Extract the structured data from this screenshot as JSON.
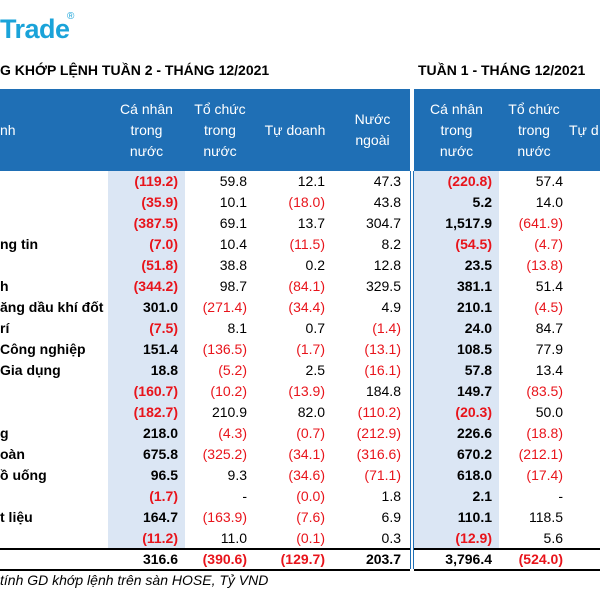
{
  "logo": {
    "text": "Trade",
    "reg": "®"
  },
  "titles": {
    "left": "G KHỚP LỆNH TUẦN 2 - THÁNG 12/2021",
    "right": "TUẦN 1 - THÁNG 12/2021"
  },
  "headers_left": {
    "sector": "nh",
    "c1": "Cá nhân\ntrong\nnước",
    "c2": "Tổ chức\ntrong\nnước",
    "c3": "Tự doanh",
    "c4": "Nước\nngoài"
  },
  "headers_right": {
    "c1": "Cá nhân\ntrong\nnước",
    "c2": "Tổ chức\ntrong\nnước",
    "c3": "Tự d"
  },
  "rows": [
    {
      "name": "",
      "l": [
        "(119.2)",
        "59.8",
        "12.1",
        "47.3"
      ],
      "r": [
        "(220.8)",
        "57.4"
      ]
    },
    {
      "name": "",
      "l": [
        "(35.9)",
        "10.1",
        "(18.0)",
        "43.8"
      ],
      "r": [
        "5.2",
        "14.0"
      ]
    },
    {
      "name": "",
      "l": [
        "(387.5)",
        "69.1",
        "13.7",
        "304.7"
      ],
      "r": [
        "1,517.9",
        "(641.9)"
      ]
    },
    {
      "name": "ng tin",
      "l": [
        "(7.0)",
        "10.4",
        "(11.5)",
        "8.2"
      ],
      "r": [
        "(54.5)",
        "(4.7)"
      ]
    },
    {
      "name": "",
      "l": [
        "(51.8)",
        "38.8",
        "0.2",
        "12.8"
      ],
      "r": [
        "23.5",
        "(13.8)"
      ]
    },
    {
      "name": "h",
      "l": [
        "(344.2)",
        "98.7",
        "(84.1)",
        "329.5"
      ],
      "r": [
        "381.1",
        "51.4"
      ]
    },
    {
      "name": "ăng dầu khí đốt",
      "l": [
        "301.0",
        "(271.4)",
        "(34.4)",
        "4.9"
      ],
      "r": [
        "210.1",
        "(4.5)"
      ]
    },
    {
      "name": "rí",
      "l": [
        "(7.5)",
        "8.1",
        "0.7",
        "(1.4)"
      ],
      "r": [
        "24.0",
        "84.7"
      ]
    },
    {
      "name": "Công nghiệp",
      "l": [
        "151.4",
        "(136.5)",
        "(1.7)",
        "(13.1)"
      ],
      "r": [
        "108.5",
        "77.9"
      ]
    },
    {
      "name": "Gia dụng",
      "l": [
        "18.8",
        "(5.2)",
        "2.5",
        "(16.1)"
      ],
      "r": [
        "57.8",
        "13.4"
      ]
    },
    {
      "name": "",
      "l": [
        "(160.7)",
        "(10.2)",
        "(13.9)",
        "184.8"
      ],
      "r": [
        "149.7",
        "(83.5)"
      ]
    },
    {
      "name": "",
      "l": [
        "(182.7)",
        "210.9",
        "82.0",
        "(110.2)"
      ],
      "r": [
        "(20.3)",
        "50.0"
      ]
    },
    {
      "name": "g",
      "l": [
        "218.0",
        "(4.3)",
        "(0.7)",
        "(212.9)"
      ],
      "r": [
        "226.6",
        "(18.8)"
      ]
    },
    {
      "name": "oàn",
      "l": [
        "675.8",
        "(325.2)",
        "(34.1)",
        "(316.6)"
      ],
      "r": [
        "670.2",
        "(212.1)"
      ]
    },
    {
      "name": "ồ uống",
      "l": [
        "96.5",
        "9.3",
        "(34.6)",
        "(71.1)"
      ],
      "r": [
        "618.0",
        "(17.4)"
      ]
    },
    {
      "name": "",
      "l": [
        "(1.7)",
        "-",
        "(0.0)",
        "1.8"
      ],
      "r": [
        "2.1",
        "-"
      ]
    },
    {
      "name": "t liệu",
      "l": [
        "164.7",
        "(163.9)",
        "(7.6)",
        "6.9"
      ],
      "r": [
        "110.1",
        "118.5"
      ]
    },
    {
      "name": "",
      "l": [
        "(11.2)",
        "11.0",
        "(0.1)",
        "0.3"
      ],
      "r": [
        "(12.9)",
        "5.6"
      ]
    }
  ],
  "total": {
    "l": [
      "316.6",
      "(390.6)",
      "(129.7)",
      "203.7"
    ],
    "r": [
      "3,796.4",
      "(524.0)"
    ]
  },
  "footnote": "tính GD khớp lệnh trên sàn HOSE, Tỷ VND",
  "colors": {
    "header": "#1f6fb5",
    "negative": "#e8141b",
    "accent": "#1aa3d9",
    "highlight": "#dbe6f4"
  }
}
